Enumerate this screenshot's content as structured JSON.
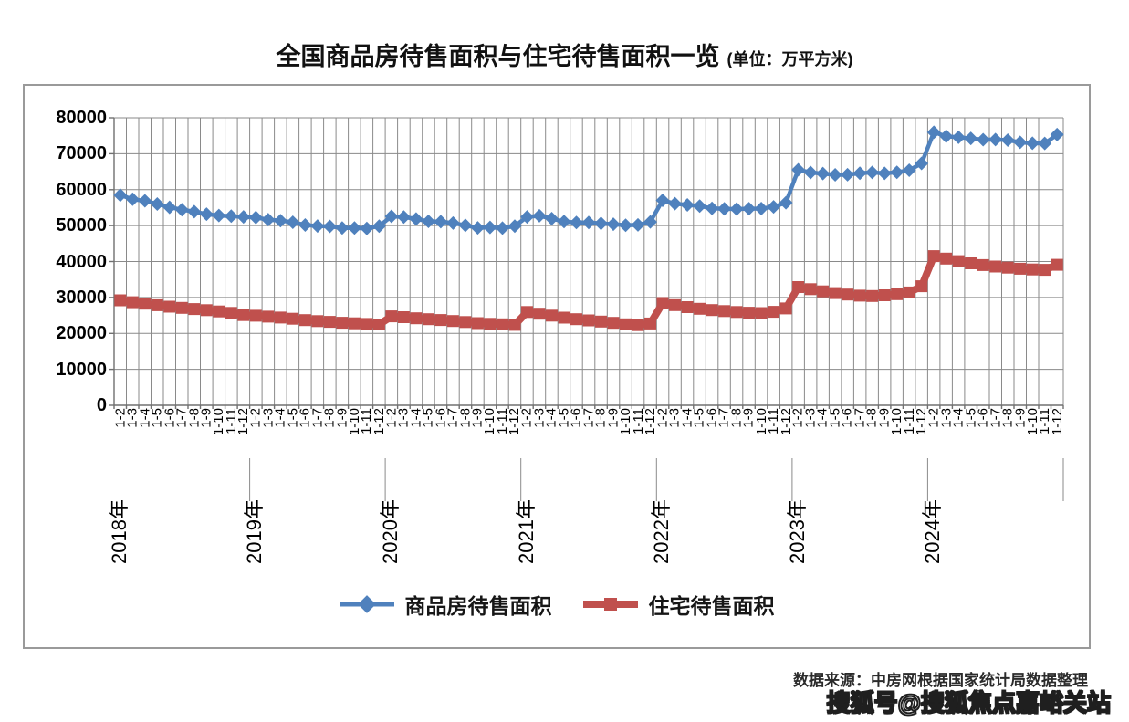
{
  "title": {
    "main": "全国商品房待售面积与住宅待售面积一览",
    "unit": "(单位：万平方米)"
  },
  "footer": {
    "source": "数据来源：中房网根据国家统计局数据整理"
  },
  "watermark": "搜狐号@搜狐焦点嘉峪关站",
  "colors": {
    "commercial": "#4F81BD",
    "residential": "#C0504D",
    "grid": "#8a8a8a",
    "frame_border": "#9a9a9a"
  },
  "chart_data": {
    "type": "line",
    "title": "全国商品房待售面积与住宅待售面积一览",
    "unit_label": "万平方米",
    "grid": true,
    "legend_position": "bottom",
    "y_axis": {
      "min": 0,
      "max": 80000,
      "step": 10000,
      "ticks": [
        0,
        10000,
        20000,
        30000,
        40000,
        50000,
        60000,
        70000,
        80000
      ]
    },
    "x_axis": {
      "month_labels": [
        "1-2",
        "1-3",
        "1-4",
        "1-5",
        "1-6",
        "1-7",
        "1-8",
        "1-9",
        "1-10",
        "1-11",
        "1-12",
        "1-2",
        "1-3",
        "1-4",
        "1-5",
        "1-6",
        "1-7",
        "1-8",
        "1-9",
        "1-10",
        "1-11",
        "1-12",
        "1-2",
        "1-3",
        "1-4",
        "1-5",
        "1-6",
        "1-7",
        "1-8",
        "1-9",
        "1-10",
        "1-11",
        "1-12",
        "1-2",
        "1-3",
        "1-4",
        "1-5",
        "1-6",
        "1-7",
        "1-8",
        "1-9",
        "1-10",
        "1-11",
        "1-12",
        "1-2",
        "1-3",
        "1-4",
        "1-5",
        "1-6",
        "1-7",
        "1-8",
        "1-9",
        "1-10",
        "1-11",
        "1-12",
        "1-2",
        "1-3",
        "1-4",
        "1-5",
        "1-6",
        "1-7",
        "1-8",
        "1-9",
        "1-10",
        "1-11",
        "1-12",
        "1-2",
        "1-3",
        "1-4",
        "1-5",
        "1-6",
        "1-7",
        "1-8",
        "1-9",
        "1-10",
        "1-11",
        "1-12"
      ],
      "year_labels": [
        {
          "label": "2018年",
          "tick_index": 0
        },
        {
          "label": "2019年",
          "tick_index": 11
        },
        {
          "label": "2020年",
          "tick_index": 22
        },
        {
          "label": "2021年",
          "tick_index": 33
        },
        {
          "label": "2022年",
          "tick_index": 44
        },
        {
          "label": "2023年",
          "tick_index": 55
        },
        {
          "label": "2024年",
          "tick_index": 66
        }
      ]
    },
    "series": [
      {
        "name": "商品房待售面积",
        "color": "#4F81BD",
        "marker": "diamond",
        "values": [
          58468,
          57329,
          56898,
          56010,
          55083,
          54428,
          53873,
          53191,
          52789,
          52627,
          52414,
          52251,
          51646,
          51380,
          50928,
          50162,
          49876,
          49784,
          49346,
          49323,
          49221,
          49821,
          52563,
          52370,
          51825,
          51184,
          51083,
          50682,
          50052,
          49374,
          49492,
          49287,
          49850,
          52425,
          52726,
          51927,
          51087,
          50846,
          50864,
          50593,
          50385,
          50092,
          50192,
          51023,
          57026,
          56113,
          55735,
          55433,
          54784,
          54655,
          54605,
          54703,
          54734,
          55203,
          56366,
          65528,
          64770,
          64487,
          64120,
          64159,
          64564,
          64795,
          64537,
          64835,
          65385,
          67295,
          75969,
          74833,
          74553,
          74256,
          73894,
          73926,
          73775,
          73177,
          72919,
          72853,
          75327
        ]
      },
      {
        "name": "住宅待售面积",
        "color": "#C0504D",
        "marker": "square",
        "values": [
          29197,
          28685,
          28260,
          27831,
          27437,
          27109,
          26774,
          26455,
          26120,
          25692,
          25091,
          24921,
          24672,
          24404,
          24071,
          23691,
          23412,
          23205,
          22968,
          22800,
          22640,
          22473,
          24737,
          24500,
          24210,
          23950,
          23710,
          23450,
          23150,
          22850,
          22650,
          22520,
          22379,
          25954,
          25467,
          24930,
          24391,
          23945,
          23614,
          23301,
          22923,
          22539,
          22286,
          22761,
          28455,
          27850,
          27300,
          26850,
          26500,
          26200,
          25950,
          25750,
          25650,
          26000,
          26947,
          32900,
          32300,
          31700,
          31200,
          30800,
          30500,
          30400,
          30600,
          30900,
          31400,
          33119,
          41500,
          40800,
          40100,
          39500,
          39000,
          38600,
          38300,
          38000,
          37800,
          37700,
          39088
        ]
      }
    ]
  }
}
